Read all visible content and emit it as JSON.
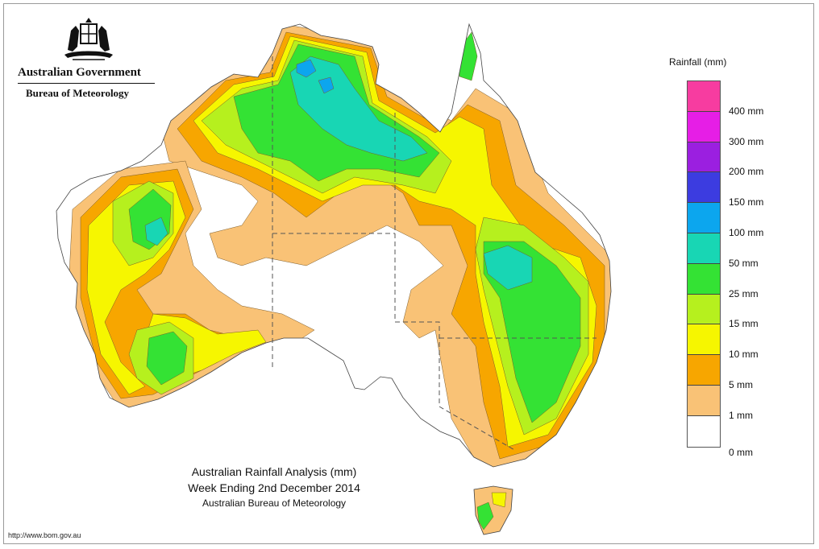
{
  "header": {
    "government_name": "Australian Government",
    "bureau_name": "Bureau of Meteorology",
    "crest_icon": "coat-of-arms-icon"
  },
  "legend": {
    "title": "Rainfall (mm)",
    "items": [
      {
        "label": "400 mm",
        "color": "#f73ca0"
      },
      {
        "label": "300 mm",
        "color": "#e61ee6"
      },
      {
        "label": "200 mm",
        "color": "#9b1fe0"
      },
      {
        "label": "150 mm",
        "color": "#3c3ce0"
      },
      {
        "label": "100 mm",
        "color": "#0ca6ee"
      },
      {
        "label": "50 mm",
        "color": "#18d6b4"
      },
      {
        "label": "25 mm",
        "color": "#34e234"
      },
      {
        "label": "15 mm",
        "color": "#b6f01e"
      },
      {
        "label": "10 mm",
        "color": "#f6f600"
      },
      {
        "label": "5 mm",
        "color": "#f7a600"
      },
      {
        "label": "1 mm",
        "color": "#f9c276"
      },
      {
        "label": "0 mm",
        "color": "#ffffff"
      }
    ]
  },
  "caption": {
    "title": "Australian Rainfall Analysis (mm)",
    "subtitle": "Week Ending 2nd December 2014",
    "credit": "Australian Bureau of Meteorology"
  },
  "footer": {
    "url": "http://www.bom.gov.au"
  },
  "colors": {
    "zero": "#ffffff",
    "one": "#f9c276",
    "five": "#f7a600",
    "ten": "#f6f600",
    "fifteen": "#b6f01e",
    "twentyfive": "#34e234",
    "fifty": "#18d6b4",
    "hundred": "#0ca6ee",
    "coast": "#444444"
  }
}
